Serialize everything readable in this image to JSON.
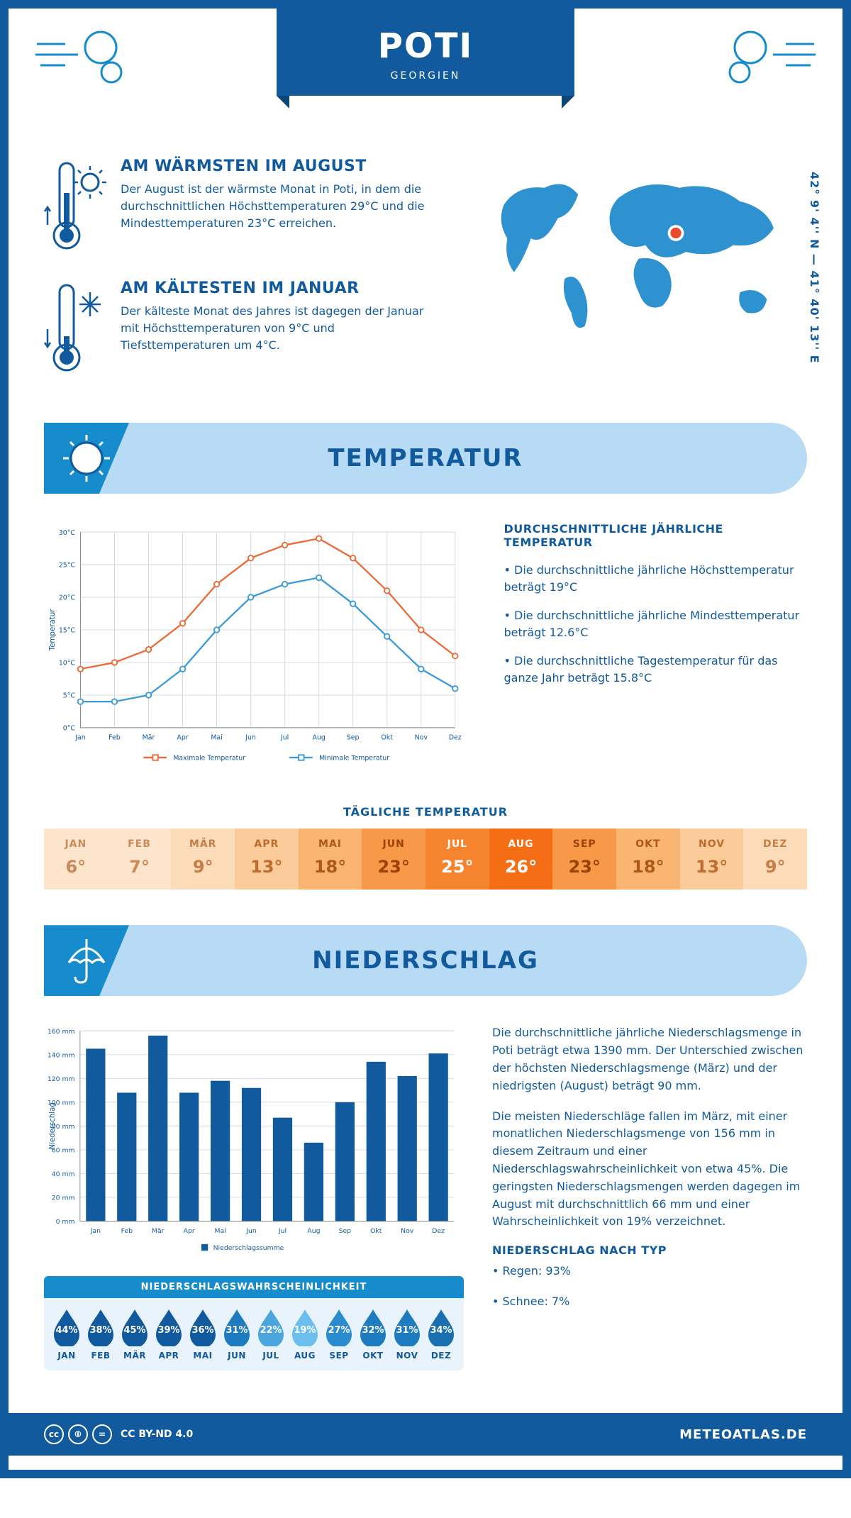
{
  "header": {
    "city": "POTI",
    "country": "GEORGIEN",
    "coords": "42° 9' 4'' N — 41° 40' 13'' E"
  },
  "facts": {
    "warm": {
      "title": "AM WÄRMSTEN IM AUGUST",
      "text": "Der August ist der wärmste Monat in Poti, in dem die durchschnittlichen Höchsttemperaturen 29°C und die Mindesttemperaturen 23°C erreichen."
    },
    "cold": {
      "title": "AM KÄLTESTEN IM JANUAR",
      "text": "Der kälteste Monat des Jahres ist dagegen der Januar mit Höchsttemperaturen von 9°C und Tiefsttemperaturen um 4°C."
    }
  },
  "sections": {
    "temperature": "TEMPERATUR",
    "precip": "NIEDERSCHLAG"
  },
  "temp_chart": {
    "type": "line",
    "months": [
      "Jan",
      "Feb",
      "Mär",
      "Apr",
      "Mai",
      "Jun",
      "Jul",
      "Aug",
      "Sep",
      "Okt",
      "Nov",
      "Dez"
    ],
    "max_values": [
      9,
      10,
      12,
      16,
      22,
      26,
      28,
      29,
      26,
      21,
      15,
      11
    ],
    "min_values": [
      4,
      4,
      5,
      9,
      15,
      20,
      22,
      23,
      19,
      14,
      9,
      6
    ],
    "max_color": "#ec6b3a",
    "min_color": "#3d9bd8",
    "ylim": [
      0,
      30
    ],
    "ytick_step": 5,
    "ylabel": "Temperatur",
    "grid_color": "#d0d8e0",
    "legend_max": "Maximale Temperatur",
    "legend_min": "Minimale Temperatur"
  },
  "temp_text": {
    "heading": "DURCHSCHNITTLICHE JÄHRLICHE TEMPERATUR",
    "b1": "• Die durchschnittliche jährliche Höchsttemperatur beträgt 19°C",
    "b2": "• Die durchschnittliche jährliche Mindesttemperatur beträgt 12.6°C",
    "b3": "• Die durchschnittliche Tagestemperatur für das ganze Jahr beträgt 15.8°C"
  },
  "daily": {
    "title": "TÄGLICHE TEMPERATUR",
    "months": [
      "JAN",
      "FEB",
      "MÄR",
      "APR",
      "MAI",
      "JUN",
      "JUL",
      "AUG",
      "SEP",
      "OKT",
      "NOV",
      "DEZ"
    ],
    "values": [
      "6°",
      "7°",
      "9°",
      "13°",
      "18°",
      "23°",
      "25°",
      "26°",
      "23°",
      "18°",
      "13°",
      "9°"
    ],
    "bg_colors": [
      "#fde5cd",
      "#fde5cd",
      "#fcdbb9",
      "#fbcb9a",
      "#fab572",
      "#f8994a",
      "#f6842f",
      "#f56e15",
      "#f8994a",
      "#fab572",
      "#fbcb9a",
      "#fcdbb9"
    ],
    "text_colors": [
      "#c98a5a",
      "#c98a5a",
      "#c57e47",
      "#bd6d2f",
      "#b05816",
      "#9b4305",
      "#ffffff",
      "#ffffff",
      "#9b4305",
      "#b05816",
      "#bd6d2f",
      "#c57e47"
    ]
  },
  "precip_chart": {
    "type": "bar",
    "months": [
      "Jan",
      "Feb",
      "Mär",
      "Apr",
      "Mai",
      "Jun",
      "Jul",
      "Aug",
      "Sep",
      "Okt",
      "Nov",
      "Dez"
    ],
    "values": [
      145,
      108,
      156,
      108,
      118,
      112,
      87,
      66,
      100,
      134,
      122,
      141
    ],
    "bar_color": "#115a9e",
    "ylim": [
      0,
      160
    ],
    "ytick_step": 20,
    "ylabel": "Niederschlag",
    "legend": "Niederschlagssumme",
    "grid_color": "#d0d8e0"
  },
  "precip_text": {
    "p1": "Die durchschnittliche jährliche Niederschlagsmenge in Poti beträgt etwa 1390 mm. Der Unterschied zwischen der höchsten Niederschlagsmenge (März) und der niedrigsten (August) beträgt 90 mm.",
    "p2": "Die meisten Niederschläge fallen im März, mit einer monatlichen Niederschlagsmenge von 156 mm in diesem Zeitraum und einer Niederschlagswahrscheinlichkeit von etwa 45%. Die geringsten Niederschlagsmengen werden dagegen im August mit durchschnittlich 66 mm und einer Wahrscheinlichkeit von 19% verzeichnet.",
    "type_heading": "NIEDERSCHLAG NACH TYP",
    "type1": "• Regen: 93%",
    "type2": "• Schnee: 7%"
  },
  "prob": {
    "title": "NIEDERSCHLAGSWAHRSCHEINLICHKEIT",
    "months": [
      "JAN",
      "FEB",
      "MÄR",
      "APR",
      "MAI",
      "JUN",
      "JUL",
      "AUG",
      "SEP",
      "OKT",
      "NOV",
      "DEZ"
    ],
    "values": [
      "44%",
      "38%",
      "45%",
      "39%",
      "36%",
      "31%",
      "22%",
      "19%",
      "27%",
      "32%",
      "31%",
      "34%"
    ],
    "colors": [
      "#115a9e",
      "#115a9e",
      "#115a9e",
      "#115a9e",
      "#115a9e",
      "#1f7bbf",
      "#4aa6dd",
      "#6cbfec",
      "#2b8bcf",
      "#1f7bbf",
      "#1f7bbf",
      "#1a6fb0"
    ]
  },
  "footer": {
    "license": "CC BY-ND 4.0",
    "site": "METEOATLAS.DE"
  },
  "colors": {
    "primary": "#115a9e",
    "secondary": "#178ccc",
    "light": "#b7dbf4"
  }
}
